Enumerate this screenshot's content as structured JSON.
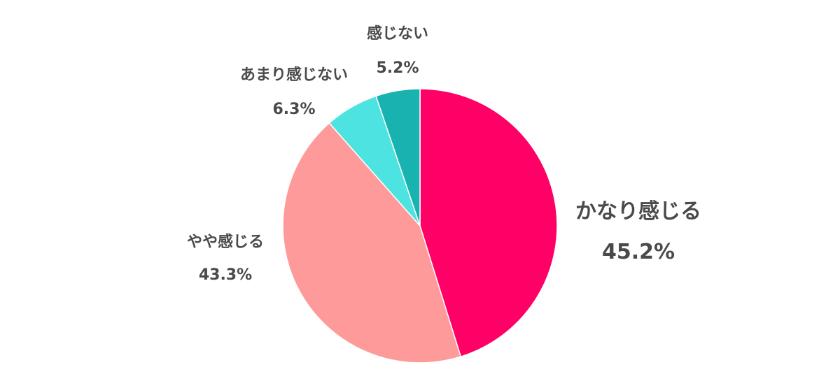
{
  "chart_data": {
    "type": "pie",
    "title": "",
    "slices": [
      {
        "label": "かなり感じる",
        "value": 45.2,
        "value_label": "45.2%",
        "color": "#ff0066"
      },
      {
        "label": "やや感じる",
        "value": 43.3,
        "value_label": "43.3%",
        "color": "#ff9a9a"
      },
      {
        "label": "あまり感じない",
        "value": 6.3,
        "value_label": "6.3%",
        "color": "#4de3e0"
      },
      {
        "label": "感じない",
        "value": 5.2,
        "value_label": "5.2%",
        "color": "#18b3b0"
      }
    ],
    "start": "12 o'clock",
    "direction": "clockwise",
    "legend": "none (labels beside slices)"
  }
}
